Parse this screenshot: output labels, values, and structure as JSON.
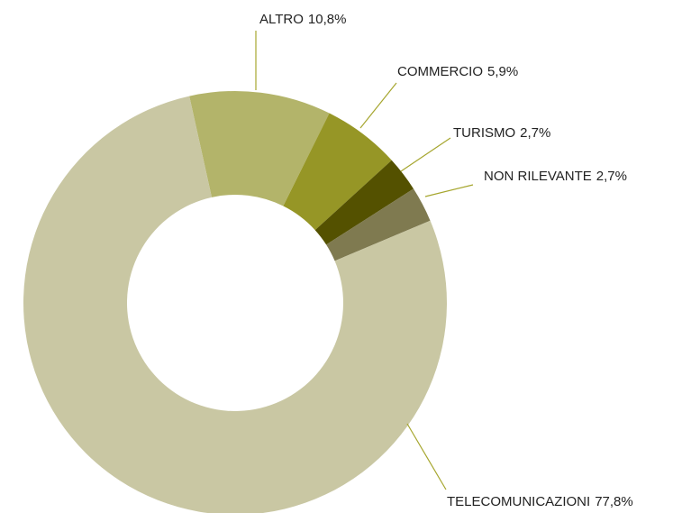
{
  "chart_data": {
    "type": "donut",
    "categories": [
      "ALTRO",
      "COMMERCIO",
      "TURISMO",
      "NON RILEVANTE",
      "TELECOMUNICAZIONI"
    ],
    "values": [
      10.8,
      5.9,
      2.7,
      2.7,
      77.8
    ],
    "value_labels": [
      "10,8%",
      "5,9%",
      "2,7%",
      "2,7%",
      "77,8%"
    ],
    "colors": [
      "#b3b46a",
      "#969626",
      "#545100",
      "#7f7a50",
      "#c9c7a3"
    ],
    "leader_color": "#a6a62e"
  }
}
